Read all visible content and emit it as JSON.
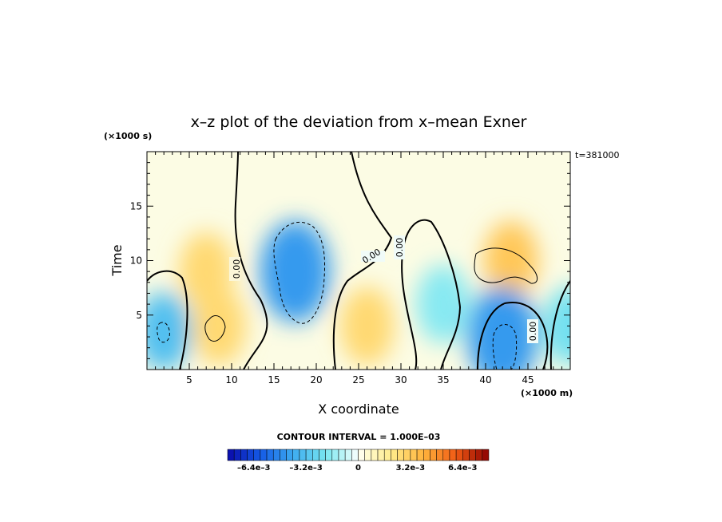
{
  "chart_data": {
    "type": "heatmap",
    "title": "x–z plot of the deviation from x–mean Exner",
    "xlabel": "X coordinate",
    "ylabel": "Time",
    "x_unit": "(×1000 m)",
    "y_unit": "(×1000 s)",
    "time_label": "t=381000",
    "xlim": [
      0,
      50
    ],
    "ylim": [
      0,
      20
    ],
    "xticks": [
      5,
      10,
      15,
      20,
      25,
      30,
      35,
      40,
      45
    ],
    "yticks": [
      5,
      10,
      15
    ],
    "contour_interval_text": "CONTOUR INTERVAL = 1.000E–03",
    "zero_contour_label": "0.00",
    "colorbar": {
      "range": [
        -0.008,
        0.008
      ],
      "tick_labels": [
        "–6.4e–3",
        "–3.2e–3",
        "0",
        "3.2e–3",
        "6.4e–3"
      ],
      "tick_values": [
        -0.0064,
        -0.0032,
        0,
        0.0032,
        0.0064
      ]
    },
    "features": [
      {
        "x": 2,
        "y": 3.5,
        "value": -0.0015
      },
      {
        "x": 7,
        "y": 9,
        "value": 0.0012
      },
      {
        "x": 8.5,
        "y": 4,
        "value": 0.0012
      },
      {
        "x": 17.5,
        "y": 9,
        "value": -0.002
      },
      {
        "x": 26,
        "y": 4,
        "value": 0.0012
      },
      {
        "x": 35,
        "y": 6,
        "value": -0.0008
      },
      {
        "x": 43,
        "y": 10,
        "value": 0.0015
      },
      {
        "x": 42,
        "y": 3,
        "value": -0.002
      },
      {
        "x": 50,
        "y": 4,
        "value": -0.001
      }
    ]
  }
}
